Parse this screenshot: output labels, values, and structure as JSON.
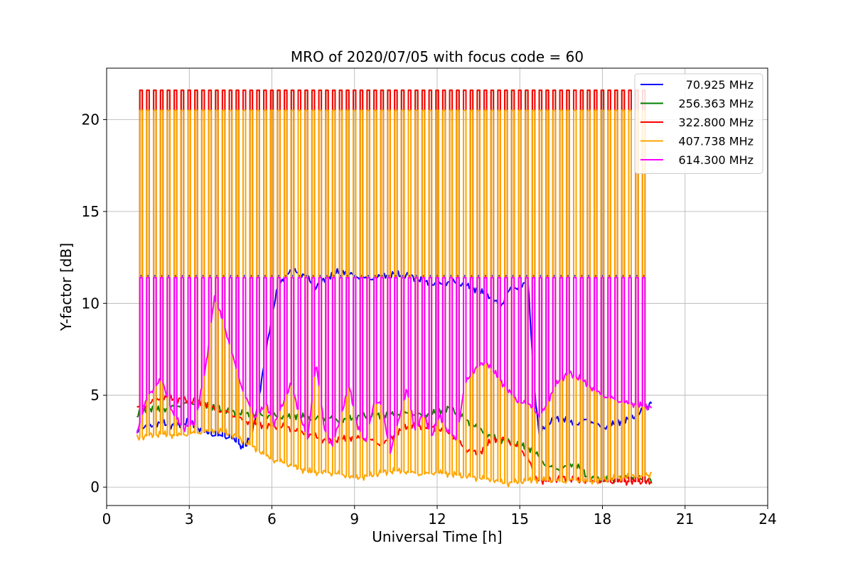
{
  "chart_data": {
    "type": "line",
    "title": "MRO of 2020/07/05 with focus code = 60",
    "xlabel": "Universal Time [h]",
    "ylabel": "Y-factor [dB]",
    "xlim": [
      0,
      24
    ],
    "ylim": [
      -1.0,
      22.8
    ],
    "xticks": [
      0,
      3,
      6,
      9,
      12,
      15,
      18,
      21,
      24
    ],
    "yticks": [
      0,
      5,
      10,
      15,
      20
    ],
    "grid": true,
    "legend_position": "top-right",
    "cal_pulses": {
      "start": 1.25,
      "end": 19.72,
      "interval": 0.25,
      "peaks": {
        "70.925 MHz": 11.5,
        "256.363 MHz": 21.6,
        "322.800 MHz": 21.6,
        "407.738 MHz": 20.5,
        "614.300 MHz": 11.4
      }
    },
    "series": [
      {
        "name": "70.925 MHz",
        "color": "#0000ff",
        "x": [
          1.1,
          1.5,
          2.0,
          2.5,
          3.0,
          3.5,
          4.0,
          4.5,
          5.0,
          5.3,
          5.6,
          5.9,
          6.2,
          6.5,
          6.8,
          7.2,
          7.6,
          8.0,
          8.5,
          9.0,
          9.5,
          10.0,
          10.5,
          11.0,
          11.5,
          12.0,
          12.5,
          13.0,
          13.5,
          14.0,
          14.3,
          14.6,
          15.0,
          15.3,
          15.5,
          15.7,
          16.0,
          16.5,
          17.0,
          17.5,
          18.0,
          18.5,
          19.0,
          19.5,
          19.8
        ],
        "y": [
          3.1,
          3.3,
          3.5,
          3.3,
          3.6,
          3.0,
          2.8,
          2.7,
          2.1,
          3.0,
          5.5,
          8.5,
          10.8,
          11.6,
          11.8,
          11.5,
          10.9,
          11.4,
          11.8,
          11.5,
          11.3,
          11.5,
          11.6,
          11.5,
          11.2,
          11.0,
          11.2,
          11.0,
          10.7,
          10.3,
          9.8,
          10.7,
          10.9,
          11.2,
          6.0,
          2.8,
          3.5,
          3.8,
          3.4,
          3.7,
          3.2,
          3.5,
          3.7,
          4.2,
          4.6
        ]
      },
      {
        "name": "256.363 MHz",
        "color": "#008000",
        "x": [
          1.1,
          1.5,
          2.0,
          2.5,
          3.0,
          3.5,
          4.0,
          4.5,
          5.0,
          5.5,
          6.0,
          6.5,
          7.0,
          7.5,
          8.0,
          8.5,
          9.0,
          9.5,
          10.0,
          10.5,
          11.0,
          11.5,
          12.0,
          12.5,
          13.0,
          13.5,
          14.0,
          14.5,
          15.0,
          15.5,
          16.0,
          16.5,
          17.0,
          17.5,
          18.0,
          18.5,
          19.0,
          19.5,
          19.8
        ],
        "y": [
          3.9,
          4.3,
          4.2,
          4.4,
          4.6,
          4.5,
          4.3,
          4.1,
          4.0,
          3.9,
          3.9,
          3.8,
          3.9,
          3.7,
          3.8,
          3.6,
          3.8,
          3.9,
          3.9,
          4.0,
          4.0,
          3.9,
          4.1,
          4.3,
          3.7,
          3.2,
          2.7,
          2.5,
          2.3,
          2.0,
          1.1,
          1.0,
          1.3,
          0.5,
          0.4,
          0.4,
          0.6,
          0.4,
          0.4
        ]
      },
      {
        "name": "322.800 MHz",
        "color": "#ff0000",
        "x": [
          1.1,
          1.5,
          2.0,
          2.5,
          3.0,
          3.5,
          4.0,
          4.5,
          5.0,
          5.5,
          6.0,
          6.5,
          7.0,
          7.5,
          8.0,
          8.5,
          9.0,
          9.5,
          10.0,
          10.5,
          11.0,
          11.5,
          12.0,
          12.5,
          13.0,
          13.5,
          14.0,
          14.5,
          15.0,
          15.3,
          15.6,
          16.0,
          16.5,
          17.0,
          17.5,
          18.0,
          18.5,
          19.0,
          19.5,
          19.8
        ],
        "y": [
          4.3,
          4.5,
          4.9,
          4.8,
          4.7,
          4.6,
          4.2,
          4.0,
          3.6,
          3.4,
          3.3,
          3.3,
          3.0,
          2.8,
          2.5,
          2.6,
          2.7,
          2.6,
          2.3,
          2.9,
          3.4,
          3.3,
          3.2,
          2.9,
          2.1,
          1.8,
          2.6,
          2.6,
          2.1,
          1.6,
          0.4,
          0.3,
          0.5,
          0.4,
          0.3,
          0.3,
          0.3,
          0.3,
          0.3,
          0.3
        ]
      },
      {
        "name": "407.738 MHz",
        "color": "#ffa500",
        "x": [
          1.1,
          1.5,
          2.0,
          2.5,
          3.0,
          3.5,
          4.0,
          4.5,
          5.0,
          5.5,
          6.0,
          6.5,
          7.0,
          7.5,
          8.0,
          8.5,
          9.0,
          9.5,
          10.0,
          10.5,
          11.0,
          11.5,
          12.0,
          12.5,
          13.0,
          13.5,
          14.0,
          14.5,
          15.0,
          15.5,
          16.0,
          16.5,
          17.0,
          17.5,
          18.0,
          18.5,
          19.0,
          19.5,
          19.8
        ],
        "y": [
          2.7,
          2.8,
          2.9,
          2.8,
          2.9,
          3.0,
          3.1,
          2.9,
          2.5,
          2.0,
          1.5,
          1.3,
          1.0,
          0.8,
          0.8,
          0.7,
          0.5,
          0.6,
          0.8,
          0.9,
          0.8,
          0.7,
          0.8,
          0.7,
          0.6,
          0.5,
          0.4,
          0.2,
          0.3,
          0.4,
          0.4,
          0.3,
          0.4,
          0.3,
          0.4,
          0.5,
          0.6,
          0.6,
          0.7
        ]
      },
      {
        "name": "614.300 MHz",
        "color": "#ff00ff",
        "x": [
          1.1,
          1.5,
          2.0,
          2.4,
          2.8,
          3.2,
          3.6,
          3.9,
          4.2,
          4.6,
          5.0,
          5.4,
          5.8,
          6.1,
          6.4,
          6.7,
          7.0,
          7.3,
          7.6,
          7.9,
          8.2,
          8.5,
          8.8,
          9.1,
          9.4,
          9.7,
          10.0,
          10.3,
          10.6,
          10.9,
          11.2,
          11.5,
          11.8,
          12.1,
          12.4,
          12.7,
          13.0,
          13.4,
          13.8,
          14.2,
          14.6,
          15.0,
          15.4,
          15.7,
          16.0,
          16.4,
          16.8,
          17.2,
          17.6,
          18.0,
          18.4,
          18.8,
          19.2,
          19.5,
          19.8
        ],
        "y": [
          3.0,
          5.0,
          5.9,
          4.0,
          3.2,
          3.5,
          6.5,
          10.3,
          9.2,
          7.0,
          5.0,
          3.8,
          4.5,
          3.4,
          4.6,
          5.6,
          4.0,
          2.6,
          6.8,
          3.2,
          2.2,
          3.9,
          5.5,
          3.4,
          2.4,
          4.6,
          4.5,
          1.8,
          3.7,
          5.3,
          3.1,
          4.0,
          2.8,
          3.9,
          3.0,
          2.6,
          5.6,
          6.5,
          6.8,
          6.0,
          5.2,
          4.6,
          4.5,
          3.8,
          4.6,
          5.8,
          6.2,
          5.9,
          5.4,
          5.0,
          4.8,
          4.6,
          4.5,
          4.4,
          4.3
        ]
      }
    ]
  }
}
